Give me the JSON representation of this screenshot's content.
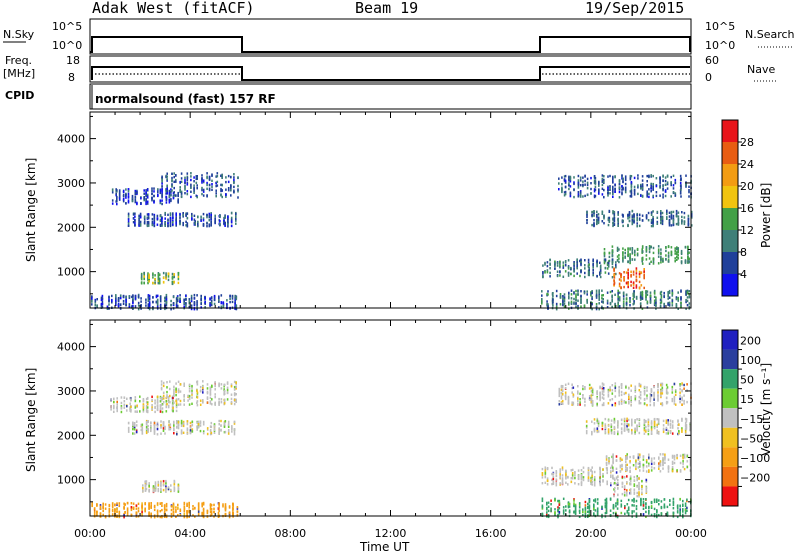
{
  "header": {
    "station": "Adak West (fitACF)",
    "beam": "Beam 19",
    "date": "19/Sep/2015"
  },
  "top_panels": {
    "nsky_label": "N.Sky",
    "nsky_tick_top": "10^5",
    "nsky_tick_bottom": "10^0",
    "nsearch_label": "N.Search",
    "nsearch_tick_top": "10^5",
    "nsearch_tick_bottom": "10^0",
    "freq_label_1": "Freq.",
    "freq_label_2": "[MHz]",
    "freq_tick_top": "18",
    "freq_tick_bottom": "8",
    "nave_label": "Nave",
    "nave_tick_top": "60",
    "nave_tick_bottom": "0",
    "cpid_label": "CPID",
    "cpid_text": "normalsound (fast) 157 RF"
  },
  "colorbars": {
    "power": {
      "label": "Power [dB]",
      "ticks": [
        "4",
        "8",
        "12",
        "16",
        "20",
        "24",
        "28"
      ],
      "colors": [
        "#1010ee",
        "#20409a",
        "#3f7f78",
        "#43a047",
        "#f1c40f",
        "#f39c12",
        "#e85d12",
        "#e8141a"
      ]
    },
    "velocity": {
      "label": "Velocity [m s⁻¹]",
      "ticks": [
        "200",
        "100",
        "50",
        "15",
        "−15",
        "−50",
        "−100",
        "−200"
      ],
      "colors": [
        "#2020c0",
        "#2a3f9e",
        "#33a36a",
        "#6ccc33",
        "#c0c0c0",
        "#f0c020",
        "#f59f15",
        "#f27211",
        "#ee1111"
      ]
    }
  },
  "chart_data": [
    {
      "type": "heatmap",
      "title": "Power",
      "ylabel": "Slant Range [km]",
      "xlabel": "Time UT",
      "x_ticks": [
        "00:00",
        "04:00",
        "08:00",
        "12:00",
        "16:00",
        "20:00",
        "00:00"
      ],
      "y_ticks": [
        "1000",
        "2000",
        "3000",
        "4000"
      ],
      "xlim": [
        0,
        24
      ],
      "ylim": [
        180,
        4600
      ],
      "colorbar_label": "Power [dB]",
      "colorbar_ticks": [
        4,
        8,
        12,
        16,
        20,
        24,
        28
      ],
      "data_windows_hours": [
        [
          0,
          6
        ],
        [
          18,
          24
        ]
      ],
      "echo_bands_km": [
        {
          "t": [
            1.5,
            5.8
          ],
          "range": [
            2050,
            2350
          ],
          "level_db": 6
        },
        {
          "t": [
            0.8,
            3.5
          ],
          "range": [
            2550,
            2900
          ],
          "level_db": 5
        },
        {
          "t": [
            2.8,
            5.9
          ],
          "range": [
            2700,
            3250
          ],
          "level_db": 7
        },
        {
          "t": [
            2.0,
            3.5
          ],
          "range": [
            750,
            1000
          ],
          "level_db": 14
        },
        {
          "t": [
            0.0,
            5.9
          ],
          "range": [
            180,
            500
          ],
          "level_db": 6
        },
        {
          "t": [
            18.6,
            24.0
          ],
          "range": [
            2700,
            3200
          ],
          "level_db": 7
        },
        {
          "t": [
            19.8,
            24.0
          ],
          "range": [
            2050,
            2400
          ],
          "level_db": 8
        },
        {
          "t": [
            20.5,
            24.0
          ],
          "range": [
            1200,
            1600
          ],
          "level_db": 12
        },
        {
          "t": [
            18.0,
            21.0
          ],
          "range": [
            900,
            1300
          ],
          "level_db": 9
        },
        {
          "t": [
            20.8,
            22.2
          ],
          "range": [
            650,
            1100
          ],
          "level_db": 26
        },
        {
          "t": [
            18.0,
            24.0
          ],
          "range": [
            180,
            600
          ],
          "level_db": 10
        }
      ]
    },
    {
      "type": "heatmap",
      "title": "Velocity",
      "ylabel": "Slant Range [km]",
      "xlabel": "Time UT",
      "x_ticks": [
        "00:00",
        "04:00",
        "08:00",
        "12:00",
        "16:00",
        "20:00",
        "00:00"
      ],
      "y_ticks": [
        "1000",
        "2000",
        "3000",
        "4000"
      ],
      "xlim": [
        0,
        24
      ],
      "ylim": [
        180,
        4600
      ],
      "colorbar_label": "Velocity [m s⁻¹]",
      "colorbar_ticks": [
        200,
        100,
        50,
        15,
        -15,
        -50,
        -100,
        -200
      ],
      "data_windows_hours": [
        [
          0,
          6
        ],
        [
          18,
          24
        ]
      ],
      "echo_bands_km": [
        {
          "t": [
            1.5,
            5.8
          ],
          "range": [
            2050,
            2350
          ],
          "velocity": 0
        },
        {
          "t": [
            0.8,
            3.5
          ],
          "range": [
            2550,
            2900
          ],
          "velocity": 0
        },
        {
          "t": [
            2.8,
            5.9
          ],
          "range": [
            2700,
            3250
          ],
          "velocity": 0
        },
        {
          "t": [
            2.0,
            3.5
          ],
          "range": [
            750,
            1000
          ],
          "velocity": 0
        },
        {
          "t": [
            0.0,
            5.9
          ],
          "range": [
            180,
            500
          ],
          "velocity": -50
        },
        {
          "t": [
            18.6,
            24.0
          ],
          "range": [
            2700,
            3200
          ],
          "velocity": 0
        },
        {
          "t": [
            19.8,
            24.0
          ],
          "range": [
            2050,
            2400
          ],
          "velocity": 0
        },
        {
          "t": [
            20.5,
            24.0
          ],
          "range": [
            1200,
            1600
          ],
          "velocity": 0
        },
        {
          "t": [
            18.0,
            21.0
          ],
          "range": [
            900,
            1300
          ],
          "velocity": 0
        },
        {
          "t": [
            20.8,
            22.2
          ],
          "range": [
            650,
            1100
          ],
          "velocity": 0
        },
        {
          "t": [
            18.0,
            24.0
          ],
          "range": [
            180,
            600
          ],
          "velocity": 50
        }
      ]
    }
  ]
}
